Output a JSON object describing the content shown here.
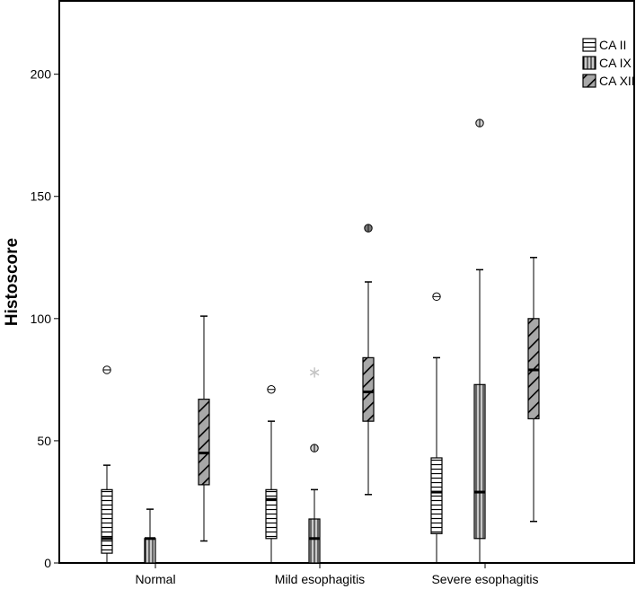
{
  "chart_data": {
    "type": "boxplot",
    "title": "",
    "xlabel": "",
    "ylabel": "Histoscore",
    "ylim": [
      0,
      230
    ],
    "yticks": [
      0,
      50,
      100,
      150,
      200
    ],
    "grid": false,
    "legend_position": "top-right",
    "categories": [
      "Normal",
      "Mild esophagitis",
      "Severe esophagitis"
    ],
    "series": [
      {
        "name": "CA II",
        "pattern": "horizontal-lines",
        "fill_color": "#ffffff",
        "boxes": [
          {
            "category": "Normal",
            "whisker_low": 0,
            "q1": 4,
            "median": 10,
            "q3": 30,
            "whisker_high": 40,
            "outliers": [
              {
                "value": 79,
                "kind": "circle"
              }
            ]
          },
          {
            "category": "Mild esophagitis",
            "whisker_low": 0,
            "q1": 10,
            "median": 26,
            "q3": 30,
            "whisker_high": 58,
            "outliers": [
              {
                "value": 71,
                "kind": "circle"
              }
            ]
          },
          {
            "category": "Severe esophagitis",
            "whisker_low": 0,
            "q1": 12,
            "median": 29,
            "q3": 43,
            "whisker_high": 84,
            "outliers": [
              {
                "value": 109,
                "kind": "circle"
              }
            ]
          }
        ]
      },
      {
        "name": "CA IX",
        "pattern": "vertical-lines",
        "fill_color": "#c8c8c8",
        "boxes": [
          {
            "category": "Normal",
            "whisker_low": 0,
            "q1": 0,
            "median": 10,
            "q3": 10,
            "whisker_high": 22,
            "outliers": []
          },
          {
            "category": "Mild esophagitis",
            "whisker_low": 0,
            "q1": 0,
            "median": 10,
            "q3": 18,
            "whisker_high": 30,
            "outliers": [
              {
                "value": 47,
                "kind": "circle"
              },
              {
                "value": 78,
                "kind": "star"
              }
            ]
          },
          {
            "category": "Severe esophagitis",
            "whisker_low": 0,
            "q1": 10,
            "median": 29,
            "q3": 73,
            "whisker_high": 120,
            "outliers": [
              {
                "value": 180,
                "kind": "circle"
              }
            ]
          }
        ]
      },
      {
        "name": "CA XII",
        "pattern": "diagonal-hatch",
        "fill_color": "#a8a8a8",
        "boxes": [
          {
            "category": "Normal",
            "whisker_low": 9,
            "q1": 32,
            "median": 45,
            "q3": 67,
            "whisker_high": 101,
            "outliers": []
          },
          {
            "category": "Mild esophagitis",
            "whisker_low": 28,
            "q1": 58,
            "median": 70,
            "q3": 84,
            "whisker_high": 115,
            "outliers": [
              {
                "value": 137,
                "kind": "filled-circle"
              }
            ]
          },
          {
            "category": "Severe esophagitis",
            "whisker_low": 17,
            "q1": 59,
            "median": 79,
            "q3": 100,
            "whisker_high": 125,
            "outliers": []
          }
        ]
      }
    ]
  }
}
